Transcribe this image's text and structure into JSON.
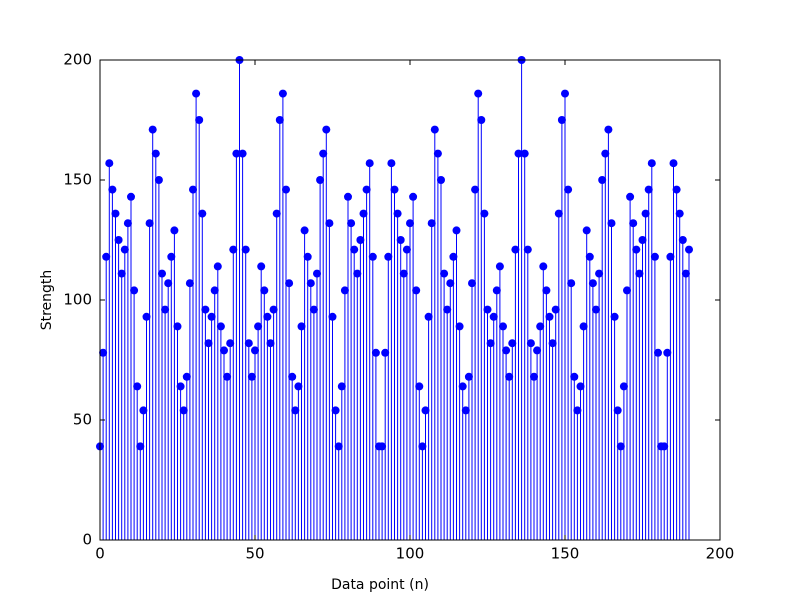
{
  "chart_data": {
    "type": "stem",
    "xlabel": "Data point (n)",
    "ylabel": "Strength",
    "color": "#0000ff",
    "x": [
      0,
      1,
      2,
      3,
      4,
      5,
      6,
      7,
      8,
      9,
      10,
      11,
      12,
      13,
      14,
      15,
      16,
      17,
      18,
      19,
      20,
      21,
      22,
      23,
      24,
      25,
      26,
      27,
      28,
      29,
      30,
      31,
      32,
      33,
      34,
      35,
      36,
      37,
      38,
      39,
      40,
      41,
      42,
      43,
      44,
      45,
      46,
      47,
      48,
      49,
      50,
      51,
      52,
      53,
      54,
      55,
      56,
      57,
      58,
      59,
      60,
      61,
      62,
      63,
      64,
      65,
      66,
      67,
      68,
      69,
      70,
      71,
      72,
      73,
      74,
      75,
      76,
      77,
      78,
      79,
      80,
      81,
      82,
      83,
      84,
      85,
      86,
      87,
      88,
      89,
      90,
      91,
      92,
      93,
      94,
      95,
      96,
      97,
      98,
      99,
      100,
      101,
      102,
      103,
      104,
      105,
      106,
      107,
      108,
      109,
      110,
      111,
      112,
      113,
      114,
      115,
      116,
      117,
      118,
      119,
      120,
      121,
      122,
      123,
      124,
      125,
      126,
      127,
      128,
      129,
      130,
      131,
      132,
      133,
      134,
      135,
      136,
      137,
      138,
      139,
      140,
      141,
      142,
      143,
      144,
      145,
      146,
      147,
      148,
      149,
      150,
      151,
      152,
      153,
      154,
      155,
      156,
      157,
      158,
      159,
      160,
      161,
      162,
      163,
      164,
      165,
      166,
      167,
      168,
      169,
      170,
      171,
      172,
      173,
      174,
      175,
      176,
      177,
      178,
      179,
      180,
      181,
      182,
      183,
      184,
      185,
      186,
      187,
      188,
      189,
      190
    ],
    "values": [
      39,
      78,
      118,
      157,
      146,
      136,
      125,
      111,
      121,
      132,
      143,
      104,
      64,
      39,
      54,
      93,
      132,
      171,
      161,
      150,
      111,
      96,
      107,
      118,
      129,
      89,
      64,
      54,
      68,
      107,
      146,
      186,
      175,
      136,
      96,
      82,
      93,
      104,
      114,
      89,
      79,
      68,
      82,
      121,
      161,
      200,
      161,
      121,
      82,
      68,
      79,
      89,
      114,
      104,
      93,
      82,
      96,
      136,
      175,
      186,
      146,
      107,
      68,
      54,
      64,
      89,
      129,
      118,
      107,
      96,
      111,
      150,
      161,
      171,
      132,
      93,
      54,
      39,
      64,
      104,
      143,
      132,
      121,
      111,
      125,
      136,
      146,
      157,
      118,
      78,
      39,
      39,
      78,
      118,
      157,
      146,
      136,
      125,
      111,
      121,
      132,
      143,
      104,
      64,
      39,
      54,
      93,
      132,
      171,
      161,
      150,
      111,
      96,
      107,
      118,
      129,
      89,
      64,
      54,
      68,
      107,
      146,
      186,
      175,
      136,
      96,
      82,
      93,
      104,
      114,
      89,
      79,
      68,
      82,
      121,
      161,
      200,
      161,
      121,
      82,
      68,
      79,
      89,
      114,
      104,
      93,
      82,
      96,
      136,
      175,
      186,
      146,
      107,
      68,
      54,
      64,
      89,
      129,
      118,
      107,
      96,
      111,
      150,
      161,
      171,
      132,
      93,
      54,
      39,
      64,
      104,
      143,
      132,
      121,
      111,
      125,
      136,
      146,
      157,
      118,
      78,
      39,
      39,
      78,
      118,
      157,
      146,
      136,
      125,
      111,
      121
    ],
    "xlim": [
      0,
      200
    ],
    "xticks": [
      0,
      50,
      100,
      150,
      200
    ],
    "ylim": [
      0,
      200
    ],
    "yticks": [
      0,
      50,
      100,
      150,
      200
    ]
  }
}
